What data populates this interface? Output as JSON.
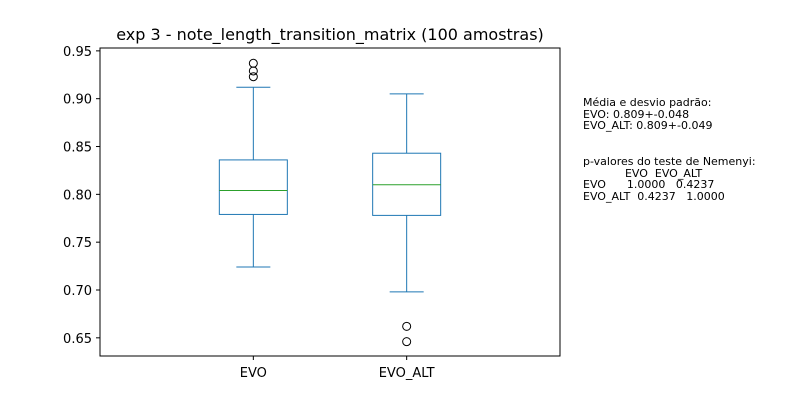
{
  "chart_data": {
    "type": "box",
    "title": "exp 3 - note_length_transition_matrix (100 amostras)",
    "xlabel": "",
    "ylabel": "",
    "ylim": [
      0.631,
      0.953
    ],
    "yticks": [
      0.65,
      0.7,
      0.75,
      0.8,
      0.85,
      0.9,
      0.95
    ],
    "ytick_labels": [
      "0.65",
      "0.70",
      "0.75",
      "0.80",
      "0.85",
      "0.90",
      "0.95"
    ],
    "grid": false,
    "box_color": "#1f77b4",
    "median_color": "#2ca02c",
    "categories": [
      "EVO",
      "EVO_ALT"
    ],
    "boxes": [
      {
        "label": "EVO",
        "whisker_low": 0.724,
        "q1": 0.779,
        "median": 0.804,
        "q3": 0.836,
        "whisker_high": 0.912,
        "outliers": [
          0.923,
          0.929,
          0.937
        ]
      },
      {
        "label": "EVO_ALT",
        "whisker_low": 0.698,
        "q1": 0.778,
        "median": 0.81,
        "q3": 0.843,
        "whisker_high": 0.905,
        "outliers": [
          0.646,
          0.662
        ]
      }
    ]
  },
  "annotations": {
    "stats_lines": [
      "Média e desvio padrão:",
      "EVO: 0.809+-0.048",
      "EVO_ALT: 0.809+-0.049"
    ],
    "nemenyi_lines": [
      "p-valores do teste de Nemenyi:",
      "            EVO  EVO_ALT",
      "EVO      1.0000   0.4237",
      "EVO_ALT  0.4237   1.0000"
    ]
  }
}
